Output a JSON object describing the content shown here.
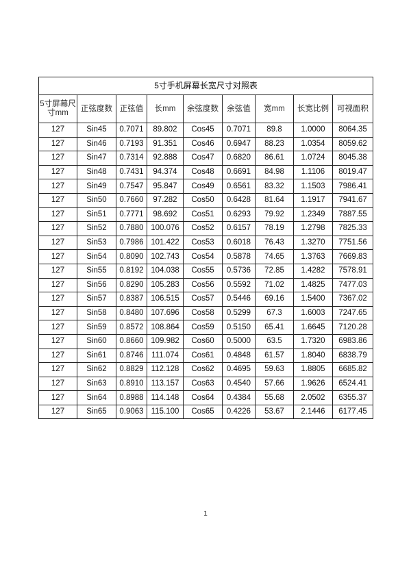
{
  "table": {
    "title": "5寸手机屏幕长宽尺寸对照表",
    "headers": [
      "5寸屏幕尺寸mm",
      "正弦度数",
      "正弦值",
      "长mm",
      "余弦度数",
      "余弦值",
      "宽mm",
      "长宽比例",
      "可视面积"
    ],
    "rows": [
      [
        "127",
        "Sin45",
        "0.7071",
        "89.802",
        "Cos45",
        "0.7071",
        "89.8",
        "1.0000",
        "8064.35"
      ],
      [
        "127",
        "Sin46",
        "0.7193",
        "91.351",
        "Cos46",
        "0.6947",
        "88.23",
        "1.0354",
        "8059.62"
      ],
      [
        "127",
        "Sin47",
        "0.7314",
        "92.888",
        "Cos47",
        "0.6820",
        "86.61",
        "1.0724",
        "8045.38"
      ],
      [
        "127",
        "Sin48",
        "0.7431",
        "94.374",
        "Cos48",
        "0.6691",
        "84.98",
        "1.1106",
        "8019.47"
      ],
      [
        "127",
        "Sin49",
        "0.7547",
        "95.847",
        "Cos49",
        "0.6561",
        "83.32",
        "1.1503",
        "7986.41"
      ],
      [
        "127",
        "Sin50",
        "0.7660",
        "97.282",
        "Cos50",
        "0.6428",
        "81.64",
        "1.1917",
        "7941.67"
      ],
      [
        "127",
        "Sin51",
        "0.7771",
        "98.692",
        "Cos51",
        "0.6293",
        "79.92",
        "1.2349",
        "7887.55"
      ],
      [
        "127",
        "Sin52",
        "0.7880",
        "100.076",
        "Cos52",
        "0.6157",
        "78.19",
        "1.2798",
        "7825.33"
      ],
      [
        "127",
        "Sin53",
        "0.7986",
        "101.422",
        "Cos53",
        "0.6018",
        "76.43",
        "1.3270",
        "7751.56"
      ],
      [
        "127",
        "Sin54",
        "0.8090",
        "102.743",
        "Cos54",
        "0.5878",
        "74.65",
        "1.3763",
        "7669.83"
      ],
      [
        "127",
        "Sin55",
        "0.8192",
        "104.038",
        "Cos55",
        "0.5736",
        "72.85",
        "1.4282",
        "7578.91"
      ],
      [
        "127",
        "Sin56",
        "0.8290",
        "105.283",
        "Cos56",
        "0.5592",
        "71.02",
        "1.4825",
        "7477.03"
      ],
      [
        "127",
        "Sin57",
        "0.8387",
        "106.515",
        "Cos57",
        "0.5446",
        "69.16",
        "1.5400",
        "7367.02"
      ],
      [
        "127",
        "Sin58",
        "0.8480",
        "107.696",
        "Cos58",
        "0.5299",
        "67.3",
        "1.6003",
        "7247.65"
      ],
      [
        "127",
        "Sin59",
        "0.8572",
        "108.864",
        "Cos59",
        "0.5150",
        "65.41",
        "1.6645",
        "7120.28"
      ],
      [
        "127",
        "Sin60",
        "0.8660",
        "109.982",
        "Cos60",
        "0.5000",
        "63.5",
        "1.7320",
        "6983.86"
      ],
      [
        "127",
        "Sin61",
        "0.8746",
        "111.074",
        "Cos61",
        "0.4848",
        "61.57",
        "1.8040",
        "6838.79"
      ],
      [
        "127",
        "Sin62",
        "0.8829",
        "112.128",
        "Cos62",
        "0.4695",
        "59.63",
        "1.8805",
        "6685.82"
      ],
      [
        "127",
        "Sin63",
        "0.8910",
        "113.157",
        "Cos63",
        "0.4540",
        "57.66",
        "1.9626",
        "6524.41"
      ],
      [
        "127",
        "Sin64",
        "0.8988",
        "114.148",
        "Cos64",
        "0.4384",
        "55.68",
        "2.0502",
        "6355.37"
      ],
      [
        "127",
        "Sin65",
        "0.9063",
        "115.100",
        "Cos65",
        "0.4226",
        "53.67",
        "2.1446",
        "6177.45"
      ]
    ]
  },
  "page_number": "1"
}
